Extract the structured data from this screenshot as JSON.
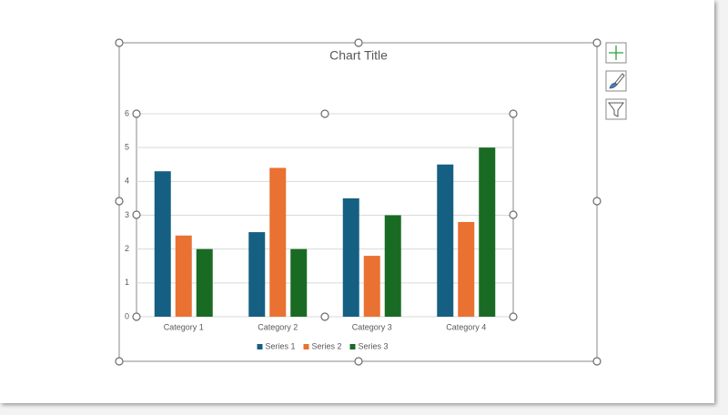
{
  "chart_data": {
    "type": "bar",
    "title": "Chart Title",
    "categories": [
      "Category 1",
      "Category 2",
      "Category 3",
      "Category 4"
    ],
    "series": [
      {
        "name": "Series 1",
        "color": "#156082",
        "values": [
          4.3,
          2.5,
          3.5,
          4.5
        ]
      },
      {
        "name": "Series 2",
        "color": "#e97132",
        "values": [
          2.4,
          4.4,
          1.8,
          2.8
        ]
      },
      {
        "name": "Series 3",
        "color": "#196b24",
        "values": [
          2,
          2,
          3,
          5
        ]
      }
    ],
    "ylim": [
      0,
      6
    ],
    "yticks": [
      0,
      1,
      2,
      3,
      4,
      5,
      6
    ],
    "grid": true,
    "legend": "bottom"
  }
}
